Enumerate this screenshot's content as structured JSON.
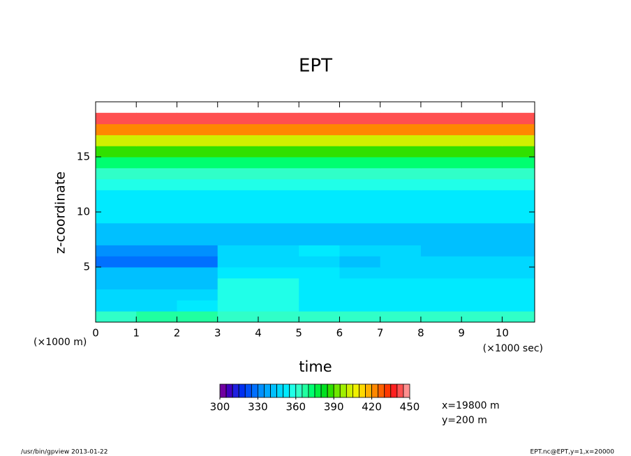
{
  "chart_data": {
    "type": "contour",
    "title": "EPT",
    "xlabel": "time",
    "ylabel": "z-coordinate",
    "xunit": "(×1000 sec)",
    "yunit": "(×1000 m)",
    "x": [
      0.5,
      1.5,
      2.5,
      3.5,
      4.5,
      5.5,
      6.5,
      7.5,
      8.5,
      9.5,
      10.5
    ],
    "y": [
      0.5,
      1.5,
      2.5,
      3.5,
      4.5,
      5.5,
      6.5,
      7.5,
      8.5,
      9.5,
      10.5,
      11.5,
      12.5,
      13.5,
      14.5,
      15.5,
      16.5,
      17.5,
      18.5,
      19.5
    ],
    "z": [
      [
        360,
        365,
        365,
        360,
        360,
        360,
        360,
        360,
        360,
        360,
        360
      ],
      [
        345,
        345,
        350,
        355,
        355,
        350,
        350,
        350,
        350,
        350,
        350
      ],
      [
        345,
        345,
        345,
        355,
        355,
        350,
        350,
        350,
        350,
        350,
        350
      ],
      [
        340,
        340,
        340,
        355,
        355,
        350,
        350,
        350,
        350,
        350,
        350
      ],
      [
        340,
        340,
        340,
        350,
        350,
        350,
        345,
        345,
        345,
        345,
        345
      ],
      [
        325,
        325,
        325,
        345,
        345,
        345,
        340,
        345,
        345,
        345,
        345
      ],
      [
        330,
        330,
        330,
        345,
        345,
        350,
        345,
        345,
        340,
        340,
        340
      ],
      [
        340,
        340,
        340,
        340,
        340,
        340,
        340,
        340,
        340,
        340,
        340
      ],
      [
        340,
        340,
        340,
        340,
        340,
        340,
        340,
        340,
        340,
        340,
        340
      ],
      [
        350,
        350,
        350,
        350,
        350,
        350,
        350,
        350,
        350,
        350,
        350
      ],
      [
        350,
        350,
        350,
        350,
        350,
        350,
        350,
        350,
        350,
        350,
        350
      ],
      [
        350,
        350,
        350,
        350,
        350,
        350,
        350,
        350,
        350,
        350,
        350
      ],
      [
        355,
        355,
        355,
        355,
        355,
        355,
        355,
        355,
        355,
        355,
        355
      ],
      [
        360,
        360,
        360,
        360,
        360,
        360,
        360,
        360,
        360,
        360,
        360
      ],
      [
        370,
        370,
        370,
        370,
        370,
        370,
        370,
        370,
        370,
        370,
        370
      ],
      [
        385,
        385,
        385,
        385,
        385,
        385,
        385,
        385,
        385,
        385,
        385
      ],
      [
        400,
        400,
        400,
        400,
        400,
        400,
        400,
        400,
        400,
        400,
        400
      ],
      [
        420,
        420,
        420,
        420,
        420,
        420,
        420,
        420,
        420,
        420,
        420
      ],
      [
        440,
        440,
        440,
        440,
        440,
        440,
        440,
        440,
        440,
        440,
        440
      ],
      [
        null,
        null,
        null,
        null,
        null,
        null,
        null,
        null,
        null,
        null,
        null
      ]
    ],
    "levels": [
      300,
      305,
      310,
      315,
      320,
      325,
      330,
      335,
      340,
      345,
      350,
      355,
      360,
      365,
      370,
      375,
      380,
      385,
      390,
      395,
      400,
      405,
      410,
      415,
      420,
      425,
      430,
      435,
      440,
      445,
      450
    ],
    "colors": [
      "#7000a0",
      "#4000c0",
      "#2020e0",
      "#0030f0",
      "#0050f8",
      "#0070ff",
      "#0090ff",
      "#00a8ff",
      "#00c0ff",
      "#00d8ff",
      "#00eaff",
      "#20ffe8",
      "#30ffc8",
      "#20ffa0",
      "#00ff70",
      "#00f040",
      "#00e020",
      "#30e000",
      "#70e800",
      "#a0f000",
      "#d0f000",
      "#f0f000",
      "#ffd800",
      "#ffb000",
      "#ff8800",
      "#ff6000",
      "#ff3800",
      "#ff2020",
      "#ff5050",
      "#ff9090"
    ],
    "cbticks": [
      300,
      330,
      360,
      390,
      420,
      450
    ],
    "xlim": [
      0,
      10.8
    ],
    "ylim": [
      0,
      20
    ],
    "xticks": [
      0,
      1,
      2,
      3,
      4,
      5,
      6,
      7,
      8,
      9,
      10
    ],
    "yticks": [
      5,
      10,
      15
    ],
    "annotations": [
      "x=19800 m",
      "y=200 m"
    ]
  },
  "footer": {
    "left": "/usr/bin/gpview  2013-01-22",
    "right": "EPT.nc@EPT,y=1,x=20000"
  }
}
